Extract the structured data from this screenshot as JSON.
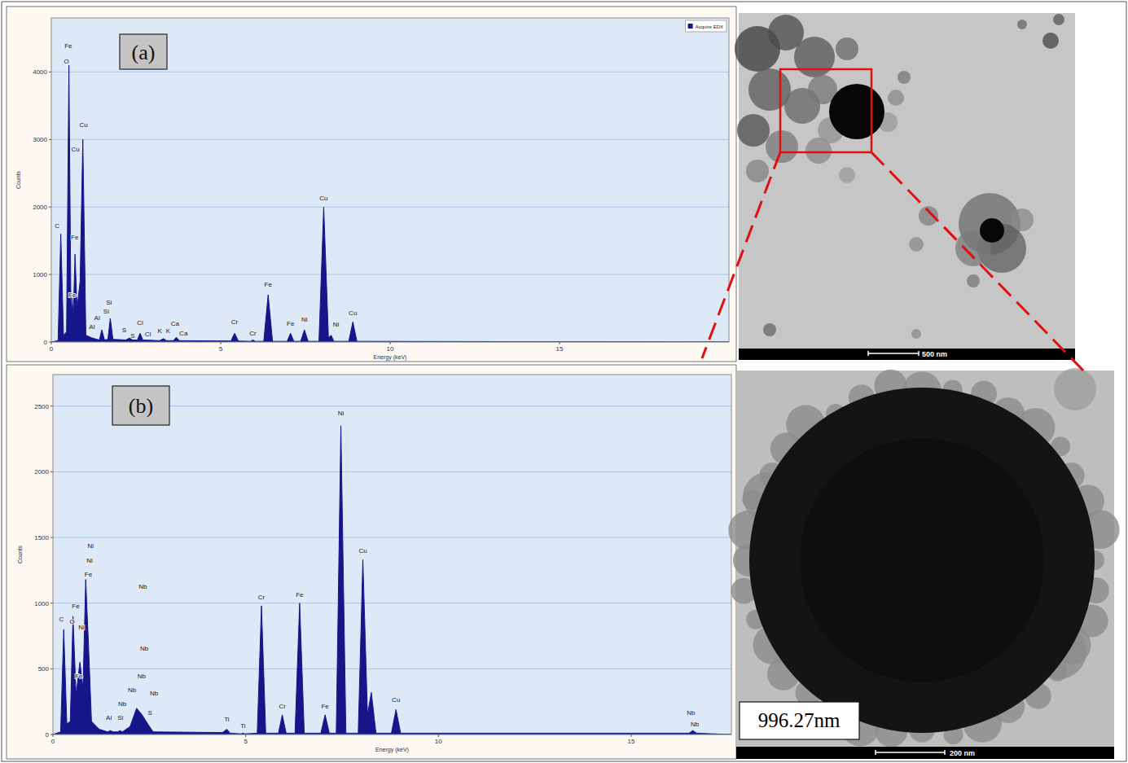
{
  "chart_data": [
    {
      "type": "area",
      "title": "(a)",
      "xlabel": "Energy (keV)",
      "ylabel": "Counts",
      "xlim": [
        0,
        20
      ],
      "ylim": [
        0,
        4800
      ],
      "xticks": [
        0,
        5,
        10,
        15
      ],
      "yticks": [
        0,
        1000,
        2000,
        3000,
        4000
      ],
      "grid": true,
      "legend": "top-right",
      "x": [
        0,
        0.2,
        0.28,
        0.36,
        0.45,
        0.52,
        0.58,
        0.61,
        0.65,
        0.7,
        0.76,
        0.85,
        0.93,
        1.02,
        1.2,
        1.42,
        1.49,
        1.57,
        1.67,
        1.74,
        1.82,
        2.2,
        2.31,
        2.4,
        2.54,
        2.62,
        2.7,
        3.2,
        3.31,
        3.4,
        3.6,
        3.69,
        3.78,
        5.3,
        5.41,
        5.52,
        5.88,
        5.95,
        6.02,
        6.27,
        6.4,
        6.53,
        6.96,
        7.06,
        7.16,
        7.36,
        7.47,
        7.58,
        7.9,
        8.04,
        8.18,
        8.26,
        8.34,
        8.78,
        8.9,
        9.02,
        20
      ],
      "series": [
        {
          "name": "Acquire EDX",
          "color": "#16168a",
          "values": [
            0,
            20,
            1600,
            100,
            150,
            4100,
            400,
            650,
            400,
            1300,
            500,
            900,
            3000,
            100,
            60,
            30,
            180,
            30,
            40,
            350,
            40,
            30,
            60,
            30,
            30,
            130,
            30,
            20,
            50,
            20,
            20,
            70,
            20,
            15,
            130,
            15,
            10,
            30,
            10,
            10,
            700,
            10,
            10,
            130,
            10,
            10,
            180,
            10,
            10,
            2000,
            60,
            100,
            10,
            10,
            300,
            10,
            0
          ]
        }
      ],
      "annotations": [
        {
          "text": "Fe",
          "x": 0.5,
          "y": 4350
        },
        {
          "text": "O",
          "x": 0.45,
          "y": 4130
        },
        {
          "text": "Cu",
          "x": 0.95,
          "y": 3180
        },
        {
          "text": "Cu",
          "x": 0.71,
          "y": 2820
        },
        {
          "text": "C",
          "x": 0.17,
          "y": 1690
        },
        {
          "text": "Fe",
          "x": 0.69,
          "y": 1520
        },
        {
          "text": "Fe",
          "x": 0.62,
          "y": 660
        },
        {
          "text": "Al",
          "x": 1.35,
          "y": 330
        },
        {
          "text": "Al",
          "x": 1.2,
          "y": 190
        },
        {
          "text": "Si",
          "x": 1.7,
          "y": 560
        },
        {
          "text": "Si",
          "x": 1.62,
          "y": 420
        },
        {
          "text": "S",
          "x": 2.15,
          "y": 150
        },
        {
          "text": "S",
          "x": 2.4,
          "y": 60
        },
        {
          "text": "Cl",
          "x": 2.62,
          "y": 250
        },
        {
          "text": "Cl",
          "x": 2.85,
          "y": 80
        },
        {
          "text": "K",
          "x": 3.2,
          "y": 130
        },
        {
          "text": "K",
          "x": 3.45,
          "y": 130
        },
        {
          "text": "Ca",
          "x": 3.65,
          "y": 240
        },
        {
          "text": "Ca",
          "x": 3.9,
          "y": 100
        },
        {
          "text": "Cr",
          "x": 5.41,
          "y": 260
        },
        {
          "text": "Cr",
          "x": 5.95,
          "y": 100
        },
        {
          "text": "Fe",
          "x": 6.4,
          "y": 820
        },
        {
          "text": "Fe",
          "x": 7.06,
          "y": 240
        },
        {
          "text": "Ni",
          "x": 7.47,
          "y": 300
        },
        {
          "text": "Cu",
          "x": 8.04,
          "y": 2100
        },
        {
          "text": "Ni",
          "x": 8.4,
          "y": 230
        },
        {
          "text": "Cu",
          "x": 8.9,
          "y": 400
        }
      ]
    },
    {
      "type": "area",
      "title": "(b)",
      "xlabel": "Energy (keV)",
      "ylabel": "Counts",
      "xlim": [
        0,
        17.6
      ],
      "ylim": [
        0,
        2740
      ],
      "xticks": [
        0,
        5,
        10,
        15
      ],
      "yticks": [
        0,
        500,
        1000,
        1500,
        2000,
        2500
      ],
      "grid": true,
      "x": [
        0,
        0.2,
        0.28,
        0.36,
        0.45,
        0.52,
        0.6,
        0.7,
        0.78,
        0.85,
        0.92,
        1.0,
        1.2,
        1.42,
        1.49,
        1.56,
        1.68,
        1.74,
        1.8,
        2.0,
        2.17,
        2.31,
        2.46,
        2.6,
        4.4,
        4.51,
        4.6,
        4.88,
        4.93,
        4.98,
        5.3,
        5.41,
        5.52,
        5.85,
        5.95,
        6.05,
        6.28,
        6.4,
        6.52,
        6.95,
        7.06,
        7.17,
        7.35,
        7.47,
        7.6,
        7.92,
        8.04,
        8.16,
        8.26,
        8.38,
        8.78,
        8.9,
        9.02,
        16.5,
        16.6,
        16.7,
        17.6
      ],
      "series": [
        {
          "color": "#16168a",
          "values": [
            0,
            20,
            800,
            80,
            100,
            900,
            300,
            550,
            350,
            1180,
            700,
            100,
            40,
            20,
            30,
            20,
            20,
            30,
            20,
            60,
            200,
            150,
            80,
            20,
            15,
            40,
            10,
            5,
            10,
            5,
            10,
            980,
            10,
            10,
            150,
            10,
            10,
            1000,
            10,
            10,
            150,
            10,
            10,
            2350,
            10,
            10,
            1330,
            150,
            320,
            10,
            10,
            190,
            10,
            10,
            30,
            10,
            0
          ]
        }
      ],
      "annotations": [
        {
          "text": "C",
          "x": 0.22,
          "y": 860
        },
        {
          "text": "Fe",
          "x": 0.59,
          "y": 960
        },
        {
          "text": "O",
          "x": 0.5,
          "y": 840
        },
        {
          "text": "Ni",
          "x": 0.74,
          "y": 800
        },
        {
          "text": "Fe",
          "x": 0.67,
          "y": 430
        },
        {
          "text": "Ni",
          "x": 0.98,
          "y": 1420
        },
        {
          "text": "Ni",
          "x": 0.95,
          "y": 1310
        },
        {
          "text": "Fe",
          "x": 0.92,
          "y": 1200
        },
        {
          "text": "Al",
          "x": 1.45,
          "y": 110
        },
        {
          "text": "Si",
          "x": 1.75,
          "y": 110
        },
        {
          "text": "Nb",
          "x": 1.8,
          "y": 220
        },
        {
          "text": "Nb",
          "x": 2.05,
          "y": 320
        },
        {
          "text": "Nb",
          "x": 2.3,
          "y": 430
        },
        {
          "text": "Nb",
          "x": 2.37,
          "y": 640
        },
        {
          "text": "Nb",
          "x": 2.33,
          "y": 1110
        },
        {
          "text": "Nb",
          "x": 2.62,
          "y": 300
        },
        {
          "text": "S",
          "x": 2.52,
          "y": 150
        },
        {
          "text": "Ti",
          "x": 4.51,
          "y": 100
        },
        {
          "text": "Ti",
          "x": 4.93,
          "y": 50
        },
        {
          "text": "Cr",
          "x": 5.41,
          "y": 1030
        },
        {
          "text": "Cr",
          "x": 5.95,
          "y": 200
        },
        {
          "text": "Fe",
          "x": 6.4,
          "y": 1050
        },
        {
          "text": "Fe",
          "x": 7.06,
          "y": 200
        },
        {
          "text": "Ni",
          "x": 7.47,
          "y": 2430
        },
        {
          "text": "Cu",
          "x": 8.04,
          "y": 1380
        },
        {
          "text": "Cu",
          "x": 8.9,
          "y": 250
        },
        {
          "text": "Nb",
          "x": 16.55,
          "y": 150
        },
        {
          "text": "Nb",
          "x": 16.65,
          "y": 60
        }
      ]
    }
  ],
  "images": [
    {
      "scale_bar": "500 nm"
    },
    {
      "scale_bar": "200 nm",
      "annotation": "996.27nm"
    }
  ]
}
